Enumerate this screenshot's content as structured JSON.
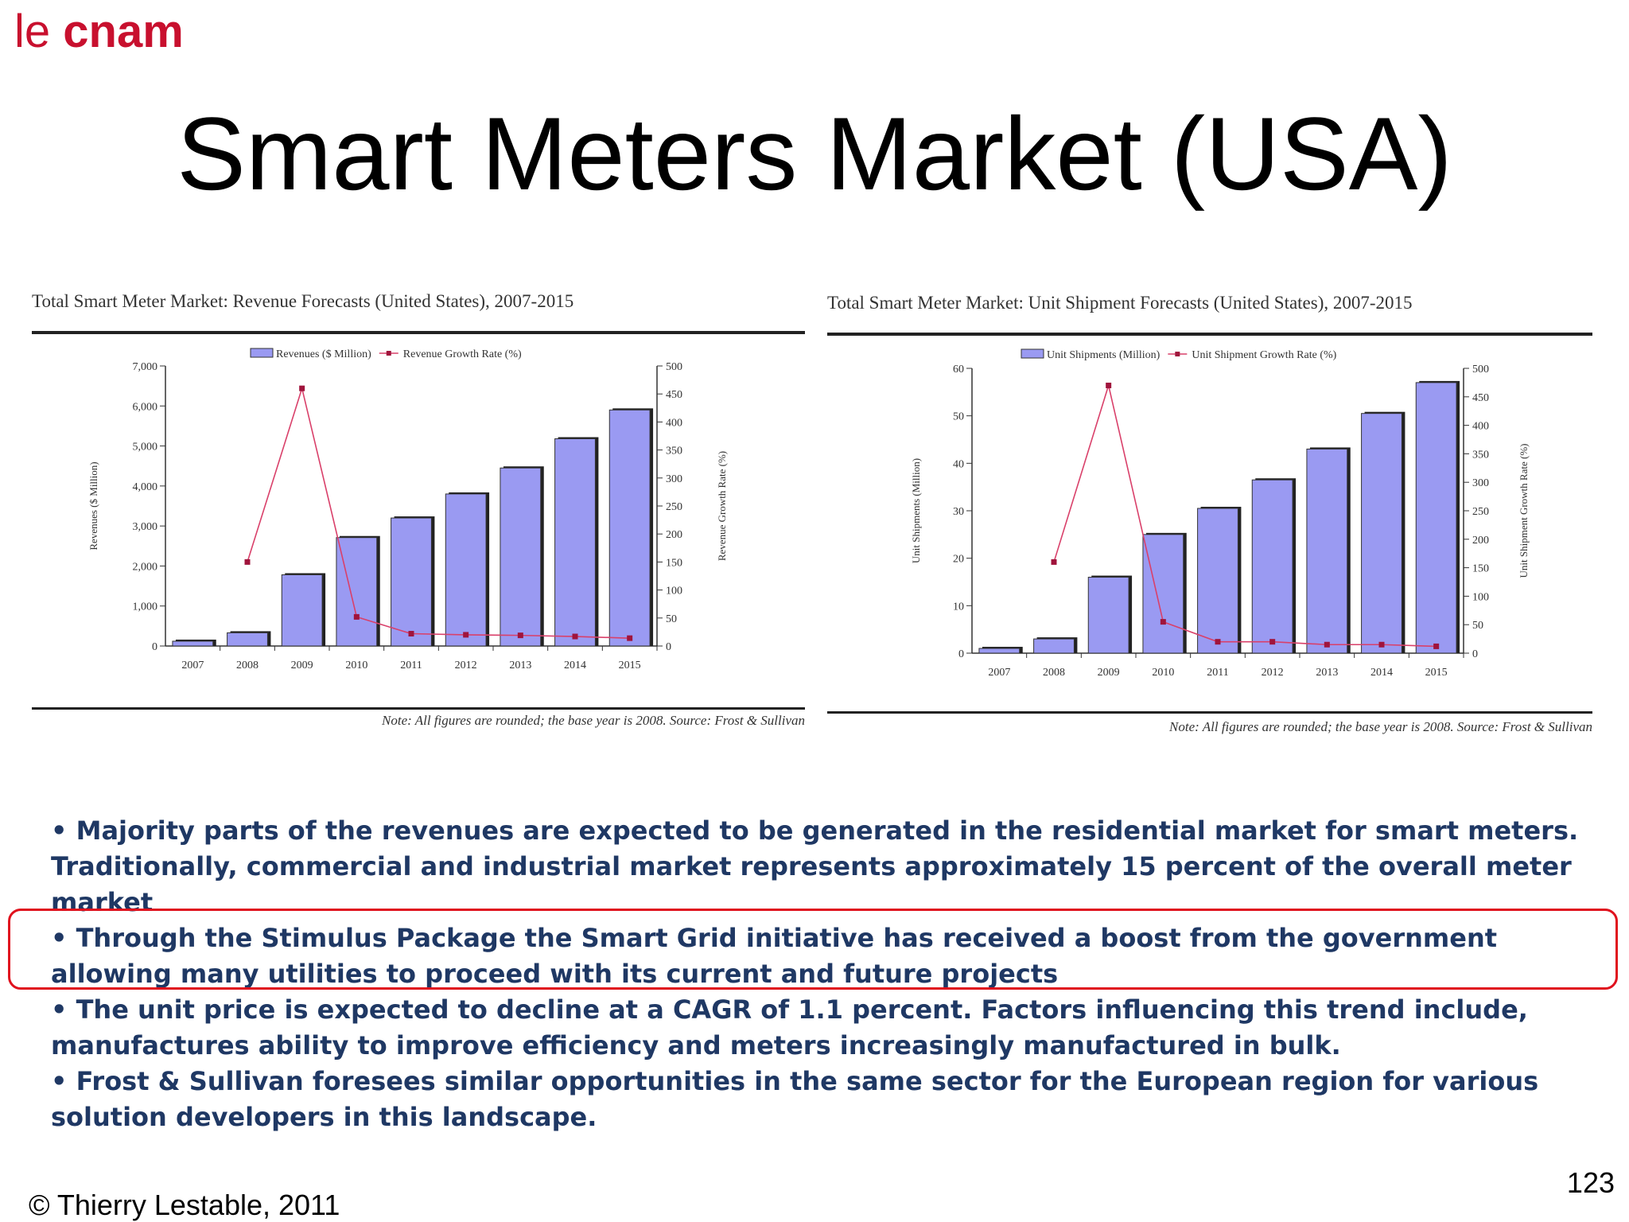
{
  "header": {
    "logo_le": "le",
    "logo_cnam": "cnam",
    "title": "Smart Meters Market (USA)"
  },
  "chart_data": [
    {
      "type": "bar",
      "title": "Total Smart Meter Market: Revenue Forecasts (United States), 2007-2015",
      "categories": [
        "2007",
        "2008",
        "2009",
        "2010",
        "2011",
        "2012",
        "2013",
        "2014",
        "2015"
      ],
      "series": [
        {
          "name": "Revenues ($ Million)",
          "type": "bar",
          "axis": "left",
          "color": "#9a9af2",
          "values": [
            120,
            330,
            1780,
            2710,
            3200,
            3800,
            4450,
            5180,
            5900
          ]
        },
        {
          "name": "Revenue Growth Rate (%)",
          "type": "line",
          "axis": "right",
          "color": "#d9406a",
          "x": [
            "2008",
            "2009",
            "2010",
            "2011",
            "2012",
            "2013",
            "2014",
            "2015"
          ],
          "values": [
            150,
            460,
            52,
            22,
            20,
            19,
            17,
            14
          ]
        }
      ],
      "ylabel": "Revenues ($ Million)",
      "ylim": [
        0,
        7000
      ],
      "yticks": [
        "0",
        "1,000",
        "2,000",
        "3,000",
        "4,000",
        "5,000",
        "6,000",
        "7,000"
      ],
      "y2label": "Revenue Growth Rate (%)",
      "y2lim": [
        0,
        500
      ],
      "y2ticks": [
        "0",
        "50",
        "100",
        "150",
        "200",
        "250",
        "300",
        "350",
        "400",
        "450",
        "500"
      ],
      "legend": "top-center",
      "note": "Note: All figures are rounded; the base year is 2008. Source: Frost & Sullivan"
    },
    {
      "type": "bar",
      "title": "Total Smart Meter Market: Unit Shipment Forecasts (United States), 2007-2015",
      "categories": [
        "2007",
        "2008",
        "2009",
        "2010",
        "2011",
        "2012",
        "2013",
        "2014",
        "2015"
      ],
      "series": [
        {
          "name": "Unit Shipments (Million)",
          "type": "bar",
          "axis": "left",
          "color": "#9a9af2",
          "values": [
            1,
            3,
            16,
            25,
            30.5,
            36.5,
            43,
            50.5,
            57
          ]
        },
        {
          "name": "Unit Shipment Growth Rate (%)",
          "type": "line",
          "axis": "right",
          "color": "#d9406a",
          "x": [
            "2008",
            "2009",
            "2010",
            "2011",
            "2012",
            "2013",
            "2014",
            "2015"
          ],
          "values": [
            160,
            470,
            55,
            20,
            20,
            15,
            15,
            12
          ]
        }
      ],
      "ylabel": "Unit Shipments (Million)",
      "ylim": [
        0,
        60
      ],
      "yticks": [
        "0",
        "10",
        "20",
        "30",
        "40",
        "50",
        "60"
      ],
      "y2label": "Unit Shipment Growth Rate (%)",
      "y2lim": [
        0,
        500
      ],
      "y2ticks": [
        "0",
        "50",
        "100",
        "150",
        "200",
        "250",
        "300",
        "350",
        "400",
        "450",
        "500"
      ],
      "legend": "top-center",
      "note": "Note: All figures are rounded; the base year is 2008. Source: Frost & Sullivan"
    }
  ],
  "bullets": [
    "• Majority parts of the revenues are expected to be generated in the residential market for smart meters. Traditionally, commercial and industrial market represents approximately 15 percent of the overall meter market",
    "• Through the Stimulus Package the Smart Grid initiative has received a boost from the government allowing many utilities to proceed with its current and future projects",
    "• The unit price is expected to decline at a CAGR of 1.1 percent. Factors influencing this trend include, manufactures ability to improve efficiency and meters increasingly manufactured in bulk.",
    "• Frost & Sullivan foresees similar opportunities in the same sector for the European region for various solution developers in this landscape."
  ],
  "footer": {
    "page_number": "123",
    "copyright": "© Thierry Lestable, 2011"
  }
}
